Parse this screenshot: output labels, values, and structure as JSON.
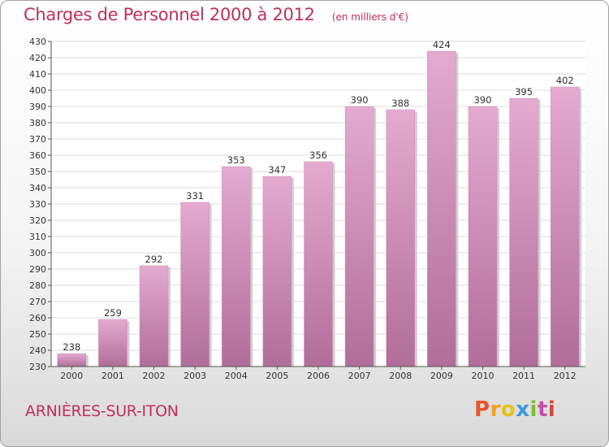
{
  "header": {
    "title": "Charges de Personnel 2000 à 2012",
    "unit_note": "(en milliers d'€)"
  },
  "footer": {
    "city": "ARNIèRES-SUR-ITON",
    "brand": "Proxiti",
    "brand_colors": [
      "#e8552b",
      "#f0a21d",
      "#e6c21a",
      "#3b9ad8",
      "#7bbf2a",
      "#c24fa6",
      "#d44a3a"
    ]
  },
  "colors": {
    "title": "#c0305a",
    "bar_light": "#e4aacf",
    "bar_dark": "#b06e98",
    "grid": "#dcdcdc",
    "axis": "#555555"
  },
  "chart_data": {
    "type": "bar",
    "categories": [
      "2000",
      "2001",
      "2002",
      "2003",
      "2004",
      "2005",
      "2006",
      "2007",
      "2008",
      "2009",
      "2010",
      "2011",
      "2012"
    ],
    "values": [
      238,
      259,
      292,
      331,
      353,
      347,
      356,
      390,
      388,
      424,
      390,
      395,
      402
    ],
    "ylim": [
      230,
      430
    ],
    "yticks": [
      230,
      240,
      250,
      260,
      270,
      280,
      290,
      300,
      310,
      320,
      330,
      340,
      350,
      360,
      370,
      380,
      390,
      400,
      410,
      420,
      430
    ],
    "grid": true,
    "data_labels": true
  }
}
